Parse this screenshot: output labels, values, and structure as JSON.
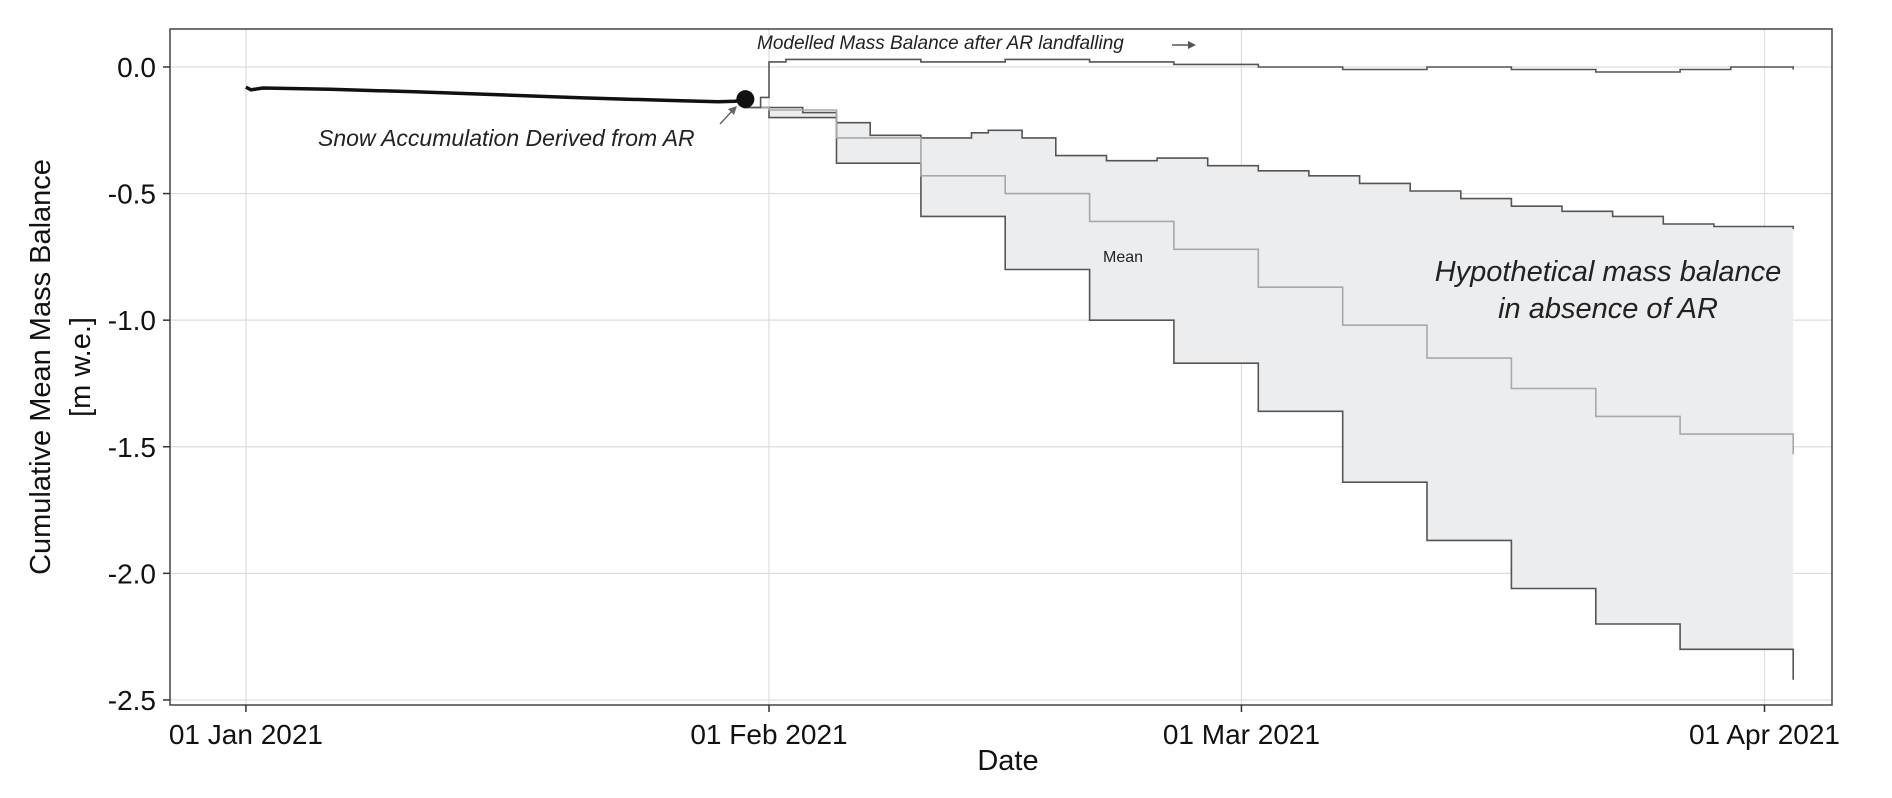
{
  "chart_data": {
    "type": "line",
    "xlabel": "Date",
    "ylabel": "Cumulative Mean Mass Balance",
    "ylabel_unit": "[m w.e.]",
    "x_ticks": [
      "01 Jan 2021",
      "01 Feb 2021",
      "01 Mar 2021",
      "01 Apr 2021"
    ],
    "y_ticks": [
      "0.0",
      "-0.5",
      "-1.0",
      "-1.5",
      "-2.0",
      "-2.5"
    ],
    "x_range_days": [
      -4.5,
      94
    ],
    "ylim": [
      -2.52,
      0.15
    ],
    "grid": true,
    "annotations": {
      "modelled": "Modelled Mass Balance after AR landfalling",
      "snow": "Snow Accumulation Derived from AR",
      "mean": "Mean",
      "hypo_line1": "Hypothetical mass balance",
      "hypo_line2": "in absence of AR"
    },
    "colors": {
      "observed": "#111111",
      "modelled": "#555555",
      "envelope_edge": "#555555",
      "mean": "#a8a8a8",
      "fill": "#ecedef",
      "grid": "#dddddd",
      "frame": "#444444"
    },
    "series": [
      {
        "key": "observed",
        "x": [
          0,
          0.3,
          1,
          5,
          10,
          15,
          20,
          25,
          28,
          29,
          29.7
        ],
        "y": [
          -0.08,
          -0.09,
          -0.083,
          -0.088,
          -0.098,
          -0.11,
          -0.122,
          -0.132,
          -0.137,
          -0.135,
          -0.127
        ]
      },
      {
        "key": "modelled",
        "x": [
          29.5,
          30.5,
          31,
          32,
          35,
          40,
          45,
          50,
          55,
          60,
          65,
          70,
          75,
          80,
          85,
          88,
          91.7
        ],
        "y": [
          -0.16,
          -0.12,
          0.02,
          0.03,
          0.03,
          0.02,
          0.03,
          0.02,
          0.01,
          0.0,
          -0.01,
          0.0,
          -0.01,
          -0.02,
          -0.01,
          0.0,
          -0.01
        ]
      },
      {
        "key": "upper",
        "x": [
          29.5,
          31,
          33,
          35,
          37,
          40,
          43,
          44,
          46,
          48,
          51,
          54,
          57,
          60,
          63,
          66,
          69,
          72,
          75,
          78,
          81,
          84,
          87,
          91.7
        ],
        "y": [
          -0.16,
          -0.16,
          -0.18,
          -0.22,
          -0.27,
          -0.28,
          -0.26,
          -0.25,
          -0.28,
          -0.35,
          -0.37,
          -0.36,
          -0.39,
          -0.41,
          -0.43,
          -0.46,
          -0.49,
          -0.52,
          -0.55,
          -0.57,
          -0.59,
          -0.62,
          -0.63,
          -0.64
        ]
      },
      {
        "key": "mean",
        "x": [
          29.5,
          31,
          35,
          40,
          45,
          50,
          55,
          60,
          65,
          70,
          75,
          80,
          85,
          91.7
        ],
        "y": [
          -0.16,
          -0.17,
          -0.28,
          -0.43,
          -0.5,
          -0.61,
          -0.72,
          -0.87,
          -1.02,
          -1.15,
          -1.27,
          -1.38,
          -1.45,
          -1.53
        ]
      },
      {
        "key": "lower",
        "x": [
          29.5,
          31,
          35,
          40,
          45,
          50,
          55,
          60,
          65,
          70,
          75,
          80,
          85,
          91.7
        ],
        "y": [
          -0.16,
          -0.2,
          -0.38,
          -0.59,
          -0.8,
          -1.0,
          -1.17,
          -1.36,
          -1.64,
          -1.87,
          -2.06,
          -2.2,
          -2.3,
          -2.42
        ]
      }
    ],
    "marker": {
      "x": 29.6,
      "y": -0.127
    }
  }
}
